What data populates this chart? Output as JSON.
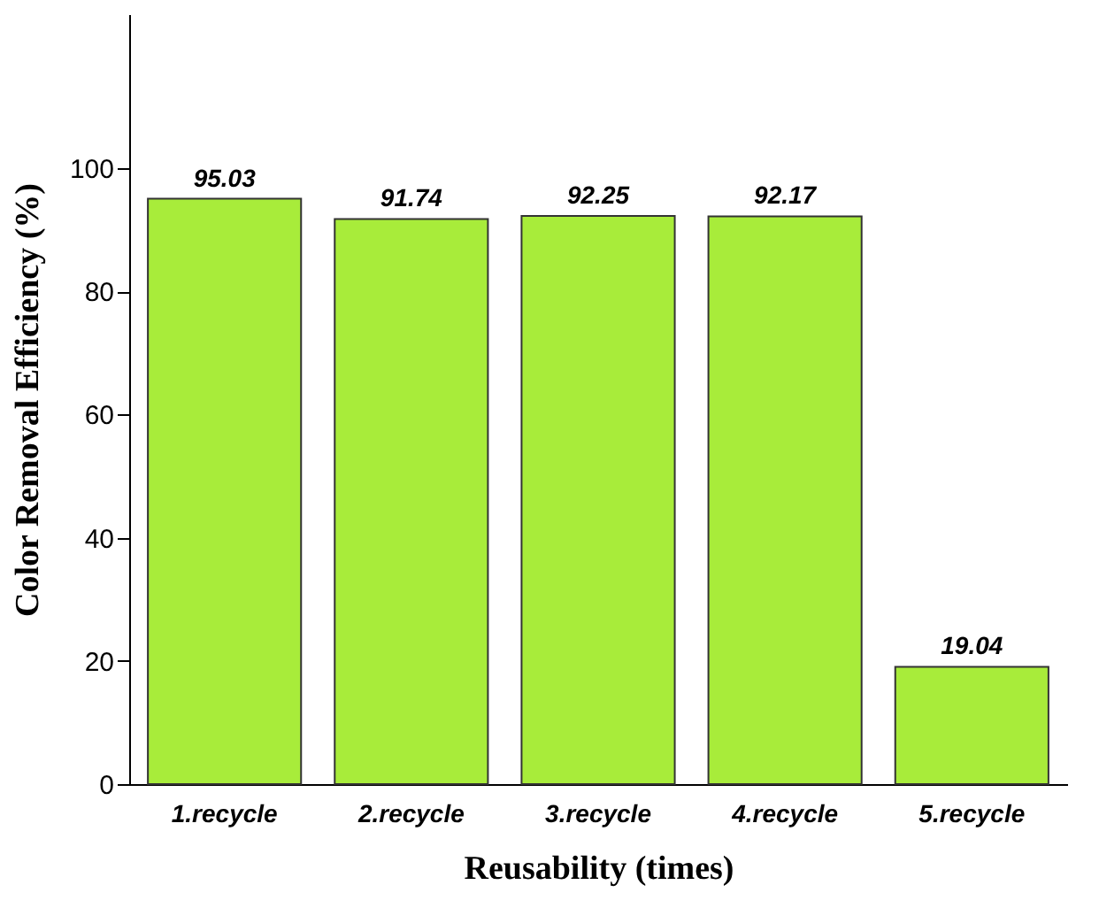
{
  "chart_data": {
    "type": "bar",
    "xlabel": "Reusability (times)",
    "ylabel": "Color Removal Efficiency (%)",
    "categories": [
      "1.recycle",
      "2.recycle",
      "3.recycle",
      "4.recycle",
      "5.recycle"
    ],
    "values": [
      95.03,
      91.74,
      92.25,
      92.17,
      19.04
    ],
    "color": "#a8ec3a",
    "ylim": [
      0,
      125
    ],
    "yticks": [
      0,
      20,
      40,
      60,
      80,
      100
    ],
    "grid": false,
    "data_labels": true
  }
}
